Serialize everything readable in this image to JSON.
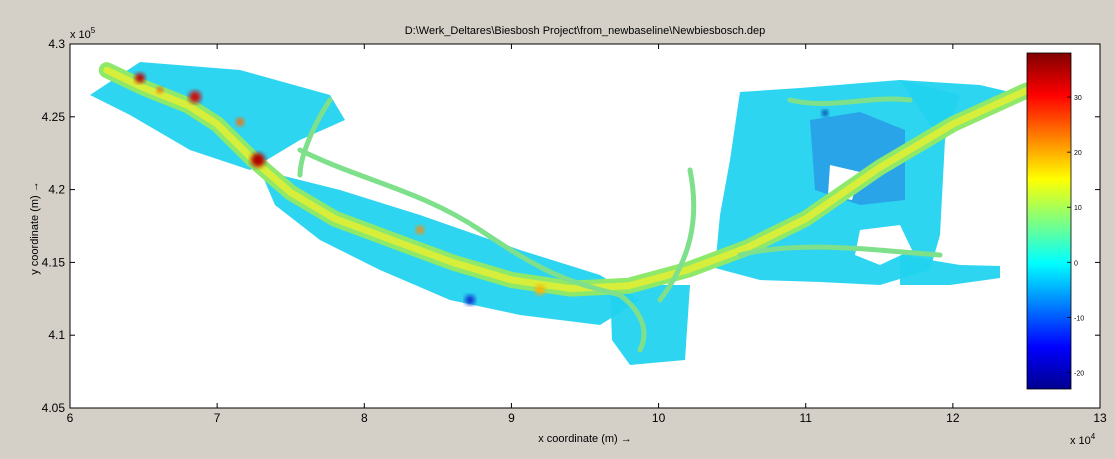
{
  "chart_data": {
    "type": "heatmap",
    "title": "D:\\Werk_Deltares\\Biesbosh Project\\from_newbaseline\\Newbiesbosch.dep",
    "xlabel": "x coordinate (m) →",
    "ylabel": "y coordinate (m) →",
    "x_exponent_label": "x 10",
    "x_exponent": "4",
    "y_exponent_label": "x 10",
    "y_exponent": "5",
    "xlim": [
      6,
      13
    ],
    "ylim": [
      4.05,
      4.3
    ],
    "x_ticks": [
      "6",
      "7",
      "8",
      "9",
      "10",
      "11",
      "12",
      "13"
    ],
    "y_ticks": [
      "4.05",
      "4.1",
      "4.15",
      "4.2",
      "4.25",
      "4.3"
    ],
    "colorbar": {
      "range": [
        -23,
        38
      ],
      "ticks": [
        "30",
        "20",
        "10",
        "0",
        "-10",
        "-20"
      ],
      "colormap": "jet"
    },
    "river_centerline": [
      [
        6.25,
        4.282
      ],
      [
        6.5,
        4.27
      ],
      [
        6.8,
        4.258
      ],
      [
        7.0,
        4.245
      ],
      [
        7.25,
        4.22
      ],
      [
        7.5,
        4.198
      ],
      [
        7.8,
        4.18
      ],
      [
        8.2,
        4.165
      ],
      [
        8.6,
        4.15
      ],
      [
        9.0,
        4.138
      ],
      [
        9.4,
        4.132
      ],
      [
        9.8,
        4.134
      ],
      [
        10.2,
        4.145
      ],
      [
        10.6,
        4.16
      ],
      [
        11.0,
        4.18
      ],
      [
        11.5,
        4.215
      ],
      [
        12.0,
        4.245
      ],
      [
        12.5,
        4.268
      ]
    ],
    "grid": false
  },
  "colors": {
    "background": "#d4d0c8",
    "axes_bg": "#ffffff"
  }
}
